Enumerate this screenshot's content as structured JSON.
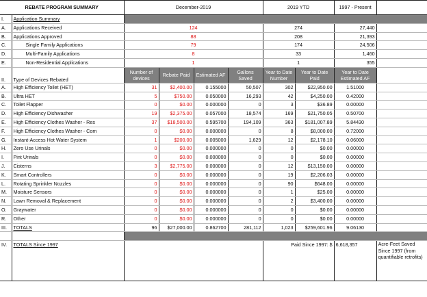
{
  "header": {
    "title": "REBATE PROGRAM SUMMARY",
    "period": "December-2019",
    "ytd": "2019  YTD",
    "since": "1997 - Present"
  },
  "section1": {
    "num": "I.",
    "title": "Application Summary",
    "rows": [
      {
        "letter": "A.",
        "label": "Applications Received",
        "month": "124",
        "ytd": "274",
        "since": "27,440"
      },
      {
        "letter": "B.",
        "label": "Applications Approved",
        "month": "88",
        "ytd": "208",
        "since": "21,393"
      },
      {
        "letter": "C.",
        "label": "Single Family Applications",
        "month": "79",
        "ytd": "174",
        "since": "24,506"
      },
      {
        "letter": "D.",
        "label": "Multi-Family Applications",
        "month": "8",
        "ytd": "33",
        "since": "1,460"
      },
      {
        "letter": "E.",
        "label": "Non-Residential Applications",
        "month": "1",
        "ytd": "1",
        "since": "355"
      }
    ]
  },
  "section2": {
    "num": "II.",
    "title": "Type of Devices Rebated",
    "columns": [
      "Number of devices",
      "Rebate Paid",
      "Estimated AF",
      "Gallons Saved",
      "Year to Date Number",
      "Year to Date Paid",
      "Year to Date Estimated AF"
    ],
    "rows": [
      {
        "letter": "A.",
        "label": "High Efficiency Toilet (HET)",
        "devices": "31",
        "paid": "$2,400.00",
        "af": "0.155000",
        "gallons": "50,507",
        "ytd_num": "302",
        "ytd_paid": "$22,950.00",
        "ytd_af": "1.51000"
      },
      {
        "letter": "B.",
        "label": "Ultra HET",
        "devices": "5",
        "paid": "$750.00",
        "af": "0.050000",
        "gallons": "16,293",
        "ytd_num": "42",
        "ytd_paid": "$4,250.00",
        "ytd_af": "0.42000"
      },
      {
        "letter": "C.",
        "label": "Toilet Flapper",
        "devices": "0",
        "paid": "$0.00",
        "af": "0.000000",
        "gallons": "0",
        "ytd_num": "3",
        "ytd_paid": "$36.89",
        "ytd_af": "0.00000"
      },
      {
        "letter": "D.",
        "label": "High Efficiency Dishwasher",
        "devices": "19",
        "paid": "$2,375.00",
        "af": "0.057000",
        "gallons": "18,574",
        "ytd_num": "169",
        "ytd_paid": "$21,750.05",
        "ytd_af": "0.50700"
      },
      {
        "letter": "E.",
        "label": "High Efficiency Clothes Washer - Res",
        "devices": "37",
        "paid": "$18,500.00",
        "af": "0.595700",
        "gallons": "194,109",
        "ytd_num": "363",
        "ytd_paid": "$181,007.89",
        "ytd_af": "5.84430"
      },
      {
        "letter": "F.",
        "label": "High Efficiency Clothes Washer - Com",
        "devices": "0",
        "paid": "$0.00",
        "af": "0.000000",
        "gallons": "0",
        "ytd_num": "8",
        "ytd_paid": "$8,000.00",
        "ytd_af": "0.72000"
      },
      {
        "letter": "G.",
        "label": "Instant-Access Hot Water System",
        "devices": "1",
        "paid": "$200.00",
        "af": "0.005000",
        "gallons": "1,629",
        "ytd_num": "12",
        "ytd_paid": "$2,178.10",
        "ytd_af": "0.06000"
      },
      {
        "letter": "H.",
        "label": "Zero Use Urinals",
        "devices": "0",
        "paid": "$0.00",
        "af": "0.000000",
        "gallons": "0",
        "ytd_num": "0",
        "ytd_paid": "$0.00",
        "ytd_af": "0.00000"
      },
      {
        "letter": "I.",
        "label": "Pint Urinals",
        "devices": "0",
        "paid": "$0.00",
        "af": "0.000000",
        "gallons": "0",
        "ytd_num": "0",
        "ytd_paid": "$0.00",
        "ytd_af": "0.00000"
      },
      {
        "letter": "J.",
        "label": "Cisterns",
        "devices": "3",
        "paid": "$2,775.00",
        "af": "0.000000",
        "gallons": "0",
        "ytd_num": "12",
        "ytd_paid": "$13,150.00",
        "ytd_af": "0.00000"
      },
      {
        "letter": "K.",
        "label": "Smart Controllers",
        "devices": "0",
        "paid": "$0.00",
        "af": "0.000000",
        "gallons": "0",
        "ytd_num": "19",
        "ytd_paid": "$2,206.03",
        "ytd_af": "0.00000"
      },
      {
        "letter": "L.",
        "label": "Rotating Sprinkler Nozzles",
        "devices": "0",
        "paid": "$0.00",
        "af": "0.000000",
        "gallons": "0",
        "ytd_num": "90",
        "ytd_paid": "$648.00",
        "ytd_af": "0.00000"
      },
      {
        "letter": "M.",
        "label": "Moisture Sensors",
        "devices": "0",
        "paid": "$0.00",
        "af": "0.000000",
        "gallons": "0",
        "ytd_num": "1",
        "ytd_paid": "$25.00",
        "ytd_af": "0.00000"
      },
      {
        "letter": "N.",
        "label": "Lawn Removal & Replacement",
        "devices": "0",
        "paid": "$0.00",
        "af": "0.000000",
        "gallons": "0",
        "ytd_num": "2",
        "ytd_paid": "$3,400.00",
        "ytd_af": "0.00000"
      },
      {
        "letter": "O.",
        "label": "Graywater",
        "devices": "0",
        "paid": "$0.00",
        "af": "0.000000",
        "gallons": "0",
        "ytd_num": "0",
        "ytd_paid": "$0.00",
        "ytd_af": "0.00000"
      },
      {
        "letter": "R.",
        "label": "Other",
        "devices": "0",
        "paid": "$0.00",
        "af": "0.000000",
        "gallons": "0",
        "ytd_num": "0",
        "ytd_paid": "$0.00",
        "ytd_af": "0.00000"
      }
    ]
  },
  "section3": {
    "num": "III.",
    "title": "TOTALS",
    "devices": "96",
    "paid": "$27,000.00",
    "af": "0.862700",
    "gallons": "281,112",
    "ytd_num": "1,023",
    "ytd_paid": "$259,601.96",
    "ytd_af": "9.06130"
  },
  "section4": {
    "num": "IV.",
    "title": "TOTALS Since 1997",
    "paid_label": "Paid Since 1997:  $",
    "paid_value": "6,618,357",
    "af_value": "621.6",
    "af_note": "Acre-Feet Saved Since 1997 (from quantifiable retrofits)"
  }
}
